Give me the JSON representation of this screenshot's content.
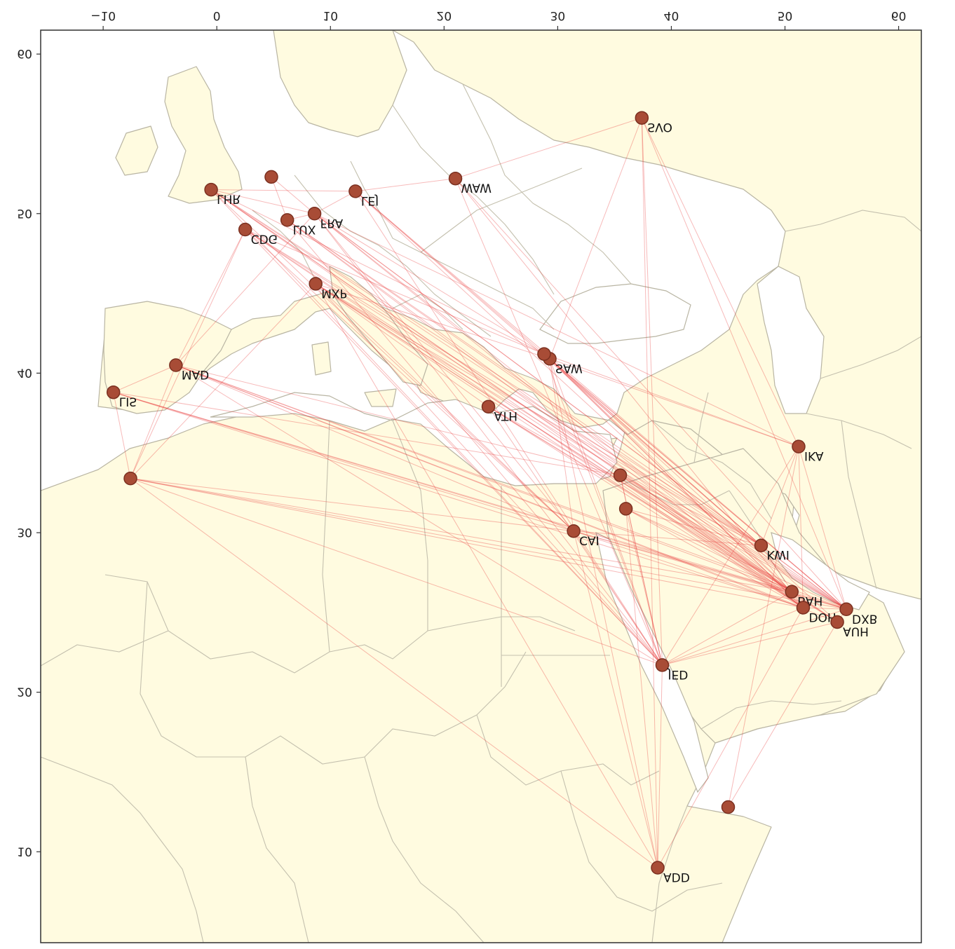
{
  "map": {
    "extent": {
      "lon": [
        -15.5,
        62
      ],
      "lat": [
        4.3,
        61.5
      ]
    },
    "x_ticks": [
      -10,
      0,
      10,
      20,
      30,
      40,
      50,
      60
    ],
    "y_ticks": [
      10,
      20,
      30,
      40,
      50,
      60
    ],
    "colors": {
      "land": "#fffbe0",
      "water": "#ffffff",
      "border": "#c4c0ae",
      "route": "#e83a3a",
      "airport": "#a84c36"
    }
  },
  "airports": [
    {
      "code": "LHR",
      "lon": -0.5,
      "lat": 51.5
    },
    {
      "code": "CDG",
      "lon": 2.5,
      "lat": 49.0
    },
    {
      "code": "LUX",
      "lon": 6.2,
      "lat": 49.6
    },
    {
      "code": "FRA",
      "lon": 8.6,
      "lat": 50.0
    },
    {
      "code": "LEJ",
      "lon": 12.2,
      "lat": 51.4
    },
    {
      "code": "WAW",
      "lon": 21.0,
      "lat": 52.2
    },
    {
      "code": "SVO",
      "lon": 37.4,
      "lat": 56.0
    },
    {
      "code": "MXP",
      "lon": 8.7,
      "lat": 45.6
    },
    {
      "code": "MAD",
      "lon": -3.6,
      "lat": 40.5
    },
    {
      "code": "LIS",
      "lon": -9.1,
      "lat": 38.8
    },
    {
      "code": "ATH",
      "lon": 23.9,
      "lat": 37.9
    },
    {
      "code": "SAW",
      "lon": 29.3,
      "lat": 40.9
    },
    {
      "code": "IKA",
      "lon": 51.2,
      "lat": 35.4
    },
    {
      "code": "CAI",
      "lon": 31.4,
      "lat": 30.1
    },
    {
      "code": "KWI",
      "lon": 47.9,
      "lat": 29.2
    },
    {
      "code": "BAH",
      "lon": 50.6,
      "lat": 26.3
    },
    {
      "code": "DOH",
      "lon": 51.6,
      "lat": 25.3
    },
    {
      "code": "DXB",
      "lon": 55.4,
      "lat": 25.2
    },
    {
      "code": "AUH",
      "lon": 54.6,
      "lat": 24.4
    },
    {
      "code": "JED",
      "lon": 39.2,
      "lat": 21.7
    },
    {
      "code": "ADD",
      "lon": 38.8,
      "lat": 9.0
    },
    {
      "code": "",
      "lon": 4.8,
      "lat": 52.3
    },
    {
      "code": "",
      "lon": 28.8,
      "lat": 41.2
    },
    {
      "code": "",
      "lon": -7.6,
      "lat": 33.4
    },
    {
      "code": "",
      "lon": 35.5,
      "lat": 33.6
    },
    {
      "code": "",
      "lon": 36.0,
      "lat": 31.5
    },
    {
      "code": "",
      "lon": 45.0,
      "lat": 12.8
    }
  ],
  "routes": [
    [
      "LHR",
      "DXB"
    ],
    [
      "LHR",
      "DOH"
    ],
    [
      "LHR",
      "BAH"
    ],
    [
      "LHR",
      "KWI"
    ],
    [
      "LHR",
      "AUH"
    ],
    [
      "LHR",
      4
    ],
    [
      "LHR",
      "CAI"
    ],
    [
      "LHR",
      "JED"
    ],
    [
      "CDG",
      "DXB"
    ],
    [
      "CDG",
      "DOH"
    ],
    [
      "CDG",
      "AUH"
    ],
    [
      "CDG",
      "KWI"
    ],
    [
      "CDG",
      "JED"
    ],
    [
      "CDG",
      "CAI"
    ],
    [
      "CDG",
      "MAD"
    ],
    [
      "FRA",
      "DXB"
    ],
    [
      "FRA",
      "DOH"
    ],
    [
      "FRA",
      "BAH"
    ],
    [
      "FRA",
      "KWI"
    ],
    [
      "FRA",
      "IKA"
    ],
    [
      "FRA",
      "JED"
    ],
    [
      "FRA",
      "CAI"
    ],
    [
      "FRA",
      "LHR"
    ],
    [
      "FRA",
      21
    ],
    [
      "FRA",
      "LUX"
    ],
    [
      "LUX",
      "DXB"
    ],
    [
      "LUX",
      "BAH"
    ],
    [
      "LUX",
      "DOH"
    ],
    [
      "LUX",
      "JED"
    ],
    [
      "LUX",
      "KWI"
    ],
    [
      "LUX",
      21
    ],
    [
      "LEJ",
      "DXB"
    ],
    [
      "LEJ",
      "BAH"
    ],
    [
      "LEJ",
      "KWI"
    ],
    [
      "LEJ",
      "WAW"
    ],
    [
      "LEJ",
      "FRA"
    ],
    [
      "LEJ",
      "JED"
    ],
    [
      "WAW",
      "DXB"
    ],
    [
      "WAW",
      "DOH"
    ],
    [
      "WAW",
      "SVO"
    ],
    [
      "WAW",
      "JED"
    ],
    [
      "SVO",
      "IKA"
    ],
    [
      "SVO",
      "DXB"
    ],
    [
      "SVO",
      "ADD"
    ],
    [
      "SVO",
      "JED"
    ],
    [
      "SVO",
      "SAW"
    ],
    [
      "MXP",
      "DXB"
    ],
    [
      "MXP",
      "DOH"
    ],
    [
      "MXP",
      "BAH"
    ],
    [
      "MXP",
      "JED"
    ],
    [
      "MXP",
      "KWI"
    ],
    [
      "MXP",
      "CAI"
    ],
    [
      "MXP",
      "AUH"
    ],
    [
      "MXP",
      "ADD"
    ],
    [
      "MXP",
      23
    ],
    [
      "MAD",
      "DXB"
    ],
    [
      "MAD",
      "DOH"
    ],
    [
      "MAD",
      "AUH"
    ],
    [
      "MAD",
      "BAH"
    ],
    [
      "MAD",
      24
    ],
    [
      "MAD",
      "JED"
    ],
    [
      "MAD",
      "CAI"
    ],
    [
      "MAD",
      23
    ],
    [
      "MAD",
      "FRA"
    ],
    [
      "LIS",
      "DXB"
    ],
    [
      "LIS",
      "DOH"
    ],
    [
      "LIS",
      "BAH"
    ],
    [
      "LIS",
      23
    ],
    [
      "LIS",
      "CAI"
    ],
    [
      "LIS",
      24
    ],
    [
      23,
      "DOH"
    ],
    [
      23,
      "DXB"
    ],
    [
      23,
      "JED"
    ],
    [
      23,
      "CAI"
    ],
    [
      23,
      "BAH"
    ],
    [
      23,
      "ADD"
    ],
    [
      23,
      "CDG"
    ],
    [
      "ATH",
      "DXB"
    ],
    [
      "ATH",
      "DOH"
    ],
    [
      "ATH",
      "JED"
    ],
    [
      "ATH",
      "BAH"
    ],
    [
      "ATH",
      "AUH"
    ],
    [
      "ATH",
      "MXP"
    ],
    [
      "SAW",
      "DXB"
    ],
    [
      "SAW",
      "DOH"
    ],
    [
      "SAW",
      "BAH"
    ],
    [
      "SAW",
      "KWI"
    ],
    [
      "SAW",
      "IKA"
    ],
    [
      "SAW",
      "JED"
    ],
    [
      "SAW",
      "CAI"
    ],
    [
      "SAW",
      "AUH"
    ],
    [
      "SAW",
      "MXP"
    ],
    [
      "SAW",
      "ADD"
    ],
    [
      22,
      "DXB"
    ],
    [
      22,
      "DOH"
    ],
    [
      22,
      "KWI"
    ],
    [
      22,
      "IKA"
    ],
    [
      22,
      "LHR"
    ],
    [
      22,
      "CDG"
    ],
    [
      22,
      "FRA"
    ],
    [
      22,
      "LEJ"
    ],
    [
      22,
      "JED"
    ],
    [
      "IKA",
      "DXB"
    ],
    [
      "IKA",
      "DOH"
    ],
    [
      "IKA",
      "JED"
    ],
    [
      "IKA",
      "KWI"
    ],
    [
      "IKA",
      26
    ],
    [
      "CAI",
      "DXB"
    ],
    [
      "CAI",
      "DOH"
    ],
    [
      "CAI",
      "JED"
    ],
    [
      "CAI",
      "KWI"
    ],
    [
      "CAI",
      "BAH"
    ],
    [
      "CAI",
      "ADD"
    ],
    [
      "KWI",
      "DXB"
    ],
    [
      "KWI",
      "DOH"
    ],
    [
      "KWI",
      24
    ],
    [
      "KWI",
      25
    ],
    [
      "BAH",
      "DXB"
    ],
    [
      "BAH",
      "JED"
    ],
    [
      "BAH",
      25
    ],
    [
      "BAH",
      24
    ],
    [
      "DOH",
      "DXB"
    ],
    [
      "DOH",
      "JED"
    ],
    [
      "DOH",
      24
    ],
    [
      "DOH",
      25
    ],
    [
      "DOH",
      "ADD"
    ],
    [
      "AUH",
      "DXB"
    ],
    [
      "AUH",
      "JED"
    ],
    [
      "AUH",
      26
    ],
    [
      "JED",
      "ADD"
    ],
    [
      "JED",
      24
    ],
    [
      "JED",
      "DXB"
    ],
    [
      "JED",
      25
    ],
    [
      24,
      "DXB"
    ],
    [
      24,
      "JED"
    ],
    [
      25,
      "DXB"
    ],
    [
      25,
      "ADD"
    ],
    [
      "MAD",
      "LIS"
    ]
  ]
}
